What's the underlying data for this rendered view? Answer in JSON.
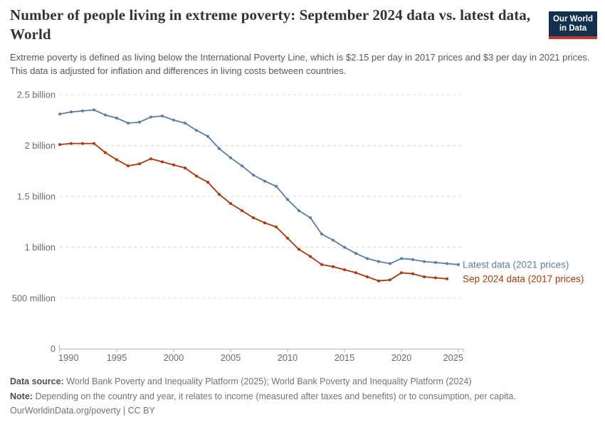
{
  "header": {
    "title": "Number of people living in extreme poverty: September 2024 data vs. latest data, World",
    "subtitle": "Extreme poverty is defined as living below the International Poverty Line, which is $2.15 per day in 2017 prices and $3 per day in 2021 prices. This data is adjusted for inflation and differences in living costs between countries."
  },
  "logo": {
    "line1": "Our World",
    "line2": "in Data",
    "background_color": "#14304f",
    "stripe_color": "#c1392b"
  },
  "chart_data": {
    "type": "line",
    "title": "Number of people living in extreme poverty: September 2024 data vs. latest data, World",
    "unit": "people",
    "xlabel": "",
    "ylabel": "",
    "xlim": [
      1990,
      2025
    ],
    "ylim_billions": [
      0,
      2.5
    ],
    "grid": "horizontal dashed",
    "gridline_color": "#dcdcdc",
    "axis_color": "#b3b3b3",
    "tick_label_color": "#6b6b6b",
    "legend_position": "right of line ends",
    "x_ticks": [
      1990,
      1995,
      2000,
      2005,
      2010,
      2015,
      2020,
      2025
    ],
    "y_ticks": [
      {
        "value_billions": 0,
        "label": "0"
      },
      {
        "value_billions": 0.5,
        "label": "500 million"
      },
      {
        "value_billions": 1,
        "label": "1 billion"
      },
      {
        "value_billions": 1.5,
        "label": "1.5 billion"
      },
      {
        "value_billions": 2,
        "label": "2 billion"
      },
      {
        "value_billions": 2.5,
        "label": "2.5 billion"
      }
    ],
    "series": [
      {
        "name": "Latest data (2021 prices)",
        "color": "#5b7da5",
        "years": [
          1990,
          1991,
          1992,
          1993,
          1994,
          1995,
          1996,
          1997,
          1998,
          1999,
          2000,
          2001,
          2002,
          2003,
          2004,
          2005,
          2006,
          2007,
          2008,
          2009,
          2010,
          2011,
          2012,
          2013,
          2014,
          2015,
          2016,
          2017,
          2018,
          2019,
          2020,
          2021,
          2022,
          2023,
          2024,
          2025
        ],
        "values_billions": [
          2.31,
          2.33,
          2.34,
          2.35,
          2.3,
          2.27,
          2.22,
          2.23,
          2.28,
          2.29,
          2.25,
          2.22,
          2.15,
          2.09,
          1.97,
          1.88,
          1.8,
          1.71,
          1.65,
          1.6,
          1.47,
          1.36,
          1.29,
          1.13,
          1.07,
          1.0,
          0.94,
          0.89,
          0.86,
          0.84,
          0.89,
          0.88,
          0.86,
          0.85,
          0.84,
          0.83
        ]
      },
      {
        "name": "Sep 2024 data (2017 prices)",
        "color": "#b13507",
        "years": [
          1990,
          1991,
          1992,
          1993,
          1994,
          1995,
          1996,
          1997,
          1998,
          1999,
          2000,
          2001,
          2002,
          2003,
          2004,
          2005,
          2006,
          2007,
          2008,
          2009,
          2010,
          2011,
          2012,
          2013,
          2014,
          2015,
          2016,
          2017,
          2018,
          2019,
          2020,
          2021,
          2022,
          2023,
          2024
        ],
        "values_billions": [
          2.01,
          2.02,
          2.02,
          2.02,
          1.93,
          1.86,
          1.8,
          1.82,
          1.87,
          1.84,
          1.81,
          1.78,
          1.7,
          1.64,
          1.52,
          1.43,
          1.36,
          1.29,
          1.24,
          1.2,
          1.09,
          0.98,
          0.91,
          0.83,
          0.81,
          0.78,
          0.75,
          0.71,
          0.67,
          0.68,
          0.75,
          0.74,
          0.71,
          0.7,
          0.69
        ]
      }
    ]
  },
  "footer": {
    "datasource_label": "Data source:",
    "datasource": "World Bank Poverty and Inequality Platform (2025); World Bank Poverty and Inequality Platform (2024)",
    "note_label": "Note:",
    "note": "Depending on the country and year, it relates to income (measured after taxes and benefits) or to consumption, per capita.",
    "link": "OurWorldinData.org/poverty",
    "separator": "|",
    "license": "CC BY"
  }
}
